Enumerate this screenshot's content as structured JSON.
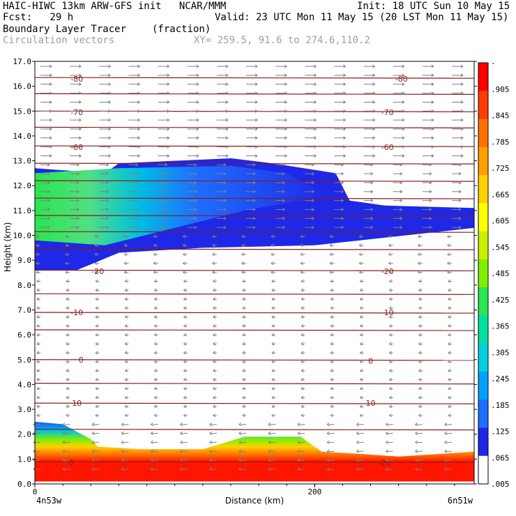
{
  "header": {
    "line1_left": "HAIC-HIWC 13km ARW-GFS init   NCAR/MMM",
    "line1_right": "Init: 18 UTC Sun 10 May 15",
    "line2_left": "Fcst:   29 h",
    "line2_right": "Valid: 23 UTC Mon 11 May 15 (20 LST Mon 11 May 15)",
    "line3_left": "Boundary Layer Tracer",
    "line3_mid": "(fraction)",
    "line4_left": "Circulation vectors",
    "line4_mid": "XY= 259.5, 91.6 to 274.6,110.2"
  },
  "colors": {
    "frame": "#000000",
    "contour": "#8b1a1a",
    "vector": "#808080",
    "colorbar": [
      "#ffffff",
      "#1e28e6",
      "#1e6eff",
      "#00a0ff",
      "#00d0e0",
      "#00e0a0",
      "#28e650",
      "#80f000",
      "#c8f000",
      "#ffff00",
      "#ffd000",
      "#ffa000",
      "#ff7000",
      "#ff3c00",
      "#ff0000"
    ]
  },
  "chart_data": {
    "type": "heatmap",
    "title": "Boundary Layer Tracer",
    "units": "(fraction)",
    "ylabel": "Height (km)",
    "xlabel": "Distance (km)",
    "xlim": [
      0,
      314
    ],
    "ylim": [
      0,
      17
    ],
    "yticks": [
      "0.0",
      "1.0",
      "2.0",
      "3.0",
      "4.0",
      "5.0",
      "6.0",
      "7.0",
      "8.0",
      "9.0",
      "10.0",
      "11.0",
      "12.0",
      "13.0",
      "14.0",
      "15.0",
      "16.0",
      "17.0"
    ],
    "xticks": [
      "0",
      "200"
    ],
    "x_end_labels": {
      "left": "4n53w",
      "right": "6n51w"
    },
    "colorbar_labels": [
      "-",
      ".905",
      ".845",
      ".785",
      ".725",
      ".665",
      ".605",
      ".545",
      ".485",
      ".425",
      ".365",
      ".305",
      ".245",
      ".185",
      ".125",
      ".065",
      ".005"
    ],
    "contour_labels": [
      {
        "text": "-80",
        "x": 30,
        "y": 16.3
      },
      {
        "text": "-80",
        "x": 262,
        "y": 16.3
      },
      {
        "text": "-70",
        "x": 30,
        "y": 14.95
      },
      {
        "text": "-70",
        "x": 252,
        "y": 14.95
      },
      {
        "text": "-60",
        "x": 30,
        "y": 13.55
      },
      {
        "text": "-60",
        "x": 252,
        "y": 13.55
      },
      {
        "text": "-20",
        "x": 45,
        "y": 8.55
      },
      {
        "text": "-20",
        "x": 252,
        "y": 8.55
      },
      {
        "text": "-10",
        "x": 30,
        "y": 6.9
      },
      {
        "text": "-10",
        "x": 252,
        "y": 6.9
      },
      {
        "text": "0",
        "x": 33,
        "y": 5.0
      },
      {
        "text": "0",
        "x": 240,
        "y": 4.95
      },
      {
        "text": "10",
        "x": 30,
        "y": 3.25
      },
      {
        "text": "10",
        "x": 240,
        "y": 3.25
      },
      {
        "text": "0",
        "x": 26,
        "y": 0.85
      },
      {
        "text": "-20",
        "x": 250,
        "y": 0.85
      }
    ],
    "contour_levels_y": [
      16.35,
      15.7,
      15.0,
      14.35,
      13.6,
      12.9,
      12.2,
      11.5,
      10.8,
      10.15,
      9.45,
      8.6,
      7.65,
      6.9,
      6.2,
      5.0,
      4.05,
      3.25,
      2.2,
      0.9
    ],
    "tracer_upper_layer": {
      "top_km": [
        [
          0,
          12.7
        ],
        [
          50,
          12.5
        ],
        [
          60,
          12.9
        ],
        [
          140,
          13.1
        ],
        [
          170,
          12.9
        ],
        [
          215,
          12.5
        ],
        [
          225,
          11.4
        ],
        [
          250,
          11.2
        ],
        [
          314,
          11.1
        ]
      ],
      "bottom_km": [
        [
          0,
          8.6
        ],
        [
          30,
          8.6
        ],
        [
          60,
          9.3
        ],
        [
          120,
          9.5
        ],
        [
          200,
          9.6
        ],
        [
          314,
          10.3
        ]
      ]
    },
    "tracer_boundary_layer": {
      "top_km": [
        [
          0,
          2.5
        ],
        [
          20,
          2.4
        ],
        [
          40,
          1.8
        ],
        [
          45,
          1.5
        ],
        [
          75,
          1.4
        ],
        [
          120,
          1.4
        ],
        [
          150,
          1.9
        ],
        [
          190,
          1.9
        ],
        [
          205,
          1.3
        ],
        [
          235,
          1.2
        ],
        [
          260,
          1.1
        ],
        [
          314,
          1.3
        ]
      ]
    }
  }
}
